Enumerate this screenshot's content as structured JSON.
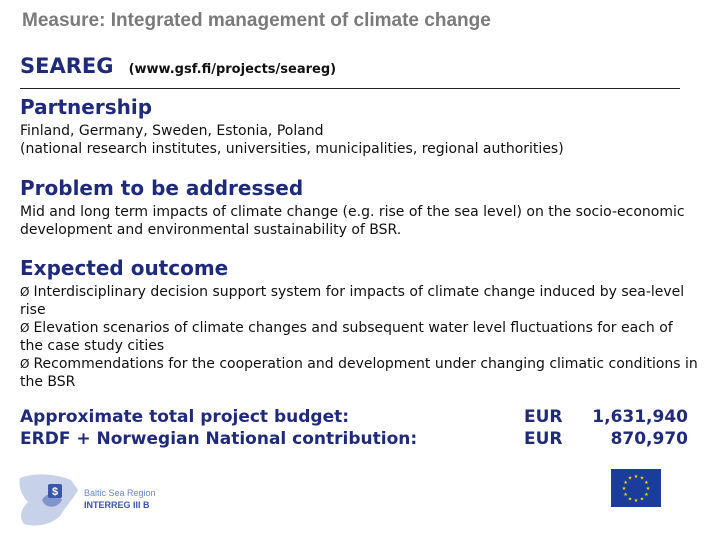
{
  "header": {
    "title": "Measure: Integrated management of climate change"
  },
  "project": {
    "name": "SEAREG",
    "url": "(www.gsf.fi/projects/seareg)"
  },
  "partnership": {
    "title": "Partnership",
    "line1": "Finland, Germany, Sweden, Estonia, Poland",
    "line2": "(national research institutes, universities, municipalities, regional authorities)"
  },
  "problem": {
    "title": "Problem to be addressed",
    "text": "Mid and long term impacts of climate change (e.g. rise of the sea level) on the socio-economic development and environmental sustainability of BSR."
  },
  "outcome": {
    "title": "Expected outcome",
    "bullet_glyph": "Ø",
    "items": [
      "Interdisciplinary decision support system for impacts of climate change induced by sea-level rise",
      "Elevation scenarios of climate changes and subsequent water level fluctuations for each of the case study cities",
      "Recommendations for the cooperation and development under changing climatic conditions in the BSR"
    ]
  },
  "budget": {
    "rows": [
      {
        "label": "Approximate total project budget:",
        "currency": "EUR",
        "amount": "1,631,940"
      },
      {
        "label": "ERDF + Norwegian National contribution:",
        "currency": "EUR",
        "amount": "870,970"
      }
    ]
  },
  "logo": {
    "line1": "Baltic Sea Region",
    "line2": "INTERREG III B"
  },
  "colors": {
    "accent": "#1f2a7a",
    "header_gray": "#7a7a7a",
    "eu_blue": "#1a3d9b",
    "eu_star": "#ffd700"
  }
}
